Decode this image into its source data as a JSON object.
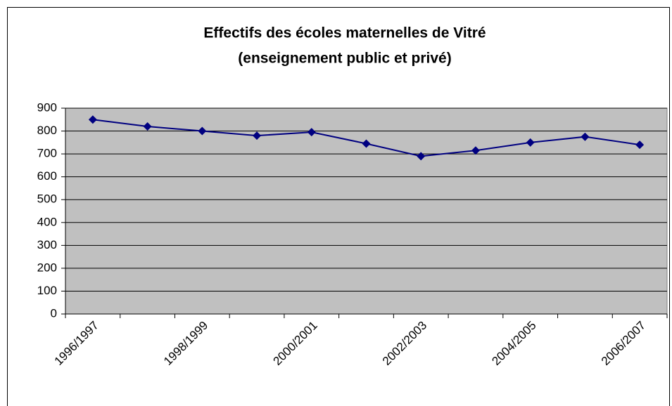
{
  "chart_data": {
    "type": "line",
    "title": [
      "Effectifs des écoles maternelles de Vitré",
      "(enseignement public et privé)"
    ],
    "categories": [
      "1996/1997",
      null,
      "1998/1999",
      null,
      "2000/2001",
      null,
      "2002/2003",
      null,
      "2004/2005",
      null,
      "2006/2007"
    ],
    "series": [
      {
        "color": "#000080",
        "values": [
          850,
          820,
          800,
          780,
          795,
          745,
          690,
          715,
          750,
          775,
          740
        ]
      }
    ],
    "ylim": [
      0,
      900
    ],
    "yticks": [
      0,
      100,
      200,
      300,
      400,
      500,
      600,
      700,
      800,
      900
    ],
    "grid": true,
    "plot_background": "#c0c0c0"
  }
}
